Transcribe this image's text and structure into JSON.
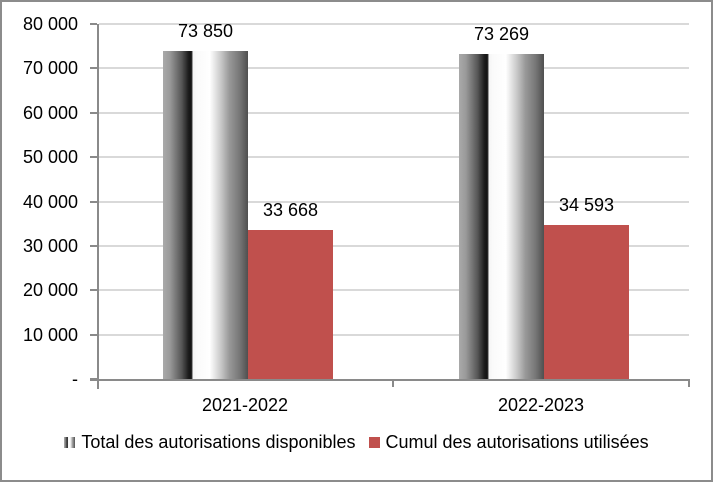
{
  "chart_data": {
    "type": "bar",
    "title": "",
    "categories": [
      "2021-2022",
      "2022-2023"
    ],
    "series": [
      {
        "name": "Total des autorisations disponibles",
        "values": [
          73850,
          73269
        ],
        "value_labels": [
          "73 850",
          "73 269"
        ],
        "fill": "gray-cylinder"
      },
      {
        "name": "Cumul des autorisations utilisées",
        "values": [
          33668,
          34593
        ],
        "value_labels": [
          "33 668",
          "34 593"
        ],
        "fill": "#C0504D"
      }
    ],
    "y_axis": {
      "min": 0,
      "max": 80000,
      "tick_interval": 10000,
      "tick_labels": [
        "80 000",
        "70 000",
        "60 000",
        "50 000",
        "40 000",
        "30 000",
        "20 000",
        "10 000",
        "-"
      ]
    },
    "x_axis_labels": [
      "2021-2022",
      "2022-2023"
    ],
    "grid": true,
    "legend_position": "bottom",
    "data_labels": "outside-end"
  },
  "colors": {
    "series_red": "#C0504D",
    "axis_line": "#8A8A8A",
    "gridline": "#D9D9D9",
    "text": "#000000",
    "frame_border": "#8C8C8C",
    "background": "#FFFFFF"
  }
}
